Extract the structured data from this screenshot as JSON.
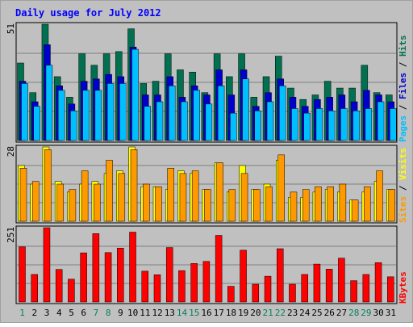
{
  "chart_data": {
    "type": "bar",
    "title": "Daily usage for July 2012",
    "days": [
      "1",
      "2",
      "3",
      "4",
      "5",
      "6",
      "7",
      "8",
      "9",
      "10",
      "11",
      "12",
      "13",
      "14",
      "15",
      "16",
      "17",
      "18",
      "19",
      "20",
      "21",
      "22",
      "23",
      "24",
      "25",
      "26",
      "27",
      "28",
      "29",
      "30",
      "31"
    ],
    "weekend_days": [
      "1",
      "7",
      "8",
      "14",
      "15",
      "21",
      "22",
      "28",
      "29"
    ],
    "panels": [
      {
        "id": "hits",
        "max_label": "51",
        "ylim": [
          0,
          51
        ],
        "series": [
          {
            "name": "Hits",
            "color": "#007050",
            "values": [
              34,
              21,
              51,
              28,
              19,
              38,
              33,
              38,
              39,
              49,
              25,
              26,
              38,
              31,
              30,
              21,
              38,
              28,
              38,
              19,
              28,
              37,
              23,
              18,
              20,
              26,
              23,
              23,
              33,
              21,
              20
            ]
          },
          {
            "name": "Files",
            "color": "#0000cc",
            "values": [
              26,
              17,
              42,
              24,
              16,
              26,
              27,
              29,
              28,
              41,
              20,
              20,
              28,
              19,
              24,
              20,
              31,
              20,
              31,
              15,
              21,
              27,
              19,
              15,
              18,
              19,
              20,
              17,
              22,
              20,
              17
            ]
          },
          {
            "name": "Pages",
            "color": "#00bfff",
            "values": [
              25,
              15,
              33,
              22,
              13,
              22,
              22,
              25,
              25,
              40,
              15,
              17,
              24,
              17,
              22,
              16,
              24,
              12,
              27,
              13,
              17,
              24,
              14,
              12,
              14,
              13,
              14,
              13,
              14,
              17,
              14
            ]
          }
        ],
        "side_label": [
          "Pages",
          "Files",
          "Hits"
        ]
      },
      {
        "id": "visits",
        "max_label": "28",
        "ylim": [
          0,
          28
        ],
        "series": [
          {
            "name": "Visits",
            "color": "#ffff00",
            "values": [
              21,
              14,
              28,
              15,
              11,
              14,
              15,
              18,
              19,
              28,
              13,
              13,
              12,
              19,
              18,
              12,
              22,
              11,
              21,
              12,
              14,
              23,
              9,
              9,
              11,
              12,
              11,
              8,
              11,
              15,
              12
            ]
          },
          {
            "name": "Sites",
            "color": "#ff9900",
            "values": [
              20,
              15,
              27,
              14,
              12,
              19,
              14,
              23,
              18,
              27,
              14,
              13,
              20,
              18,
              19,
              12,
              22,
              12,
              18,
              12,
              13,
              25,
              11,
              12,
              13,
              13,
              14,
              8,
              13,
              19,
              12
            ]
          }
        ],
        "side_label": [
          "Sites",
          "Visits"
        ]
      },
      {
        "id": "kbytes",
        "max_label": "251",
        "ylim": [
          0,
          251
        ],
        "series": [
          {
            "name": "KBytes",
            "color": "#ff0000",
            "values": [
              186,
              93,
              251,
              110,
              77,
              166,
              231,
              167,
              182,
              236,
              104,
              92,
              184,
              106,
              130,
              137,
              225,
              53,
              175,
              60,
              87,
              180,
              60,
              93,
              128,
              111,
              148,
              72,
              93,
              133,
              85
            ]
          }
        ],
        "side_label": [
          "KBytes"
        ]
      }
    ],
    "grid": true
  }
}
